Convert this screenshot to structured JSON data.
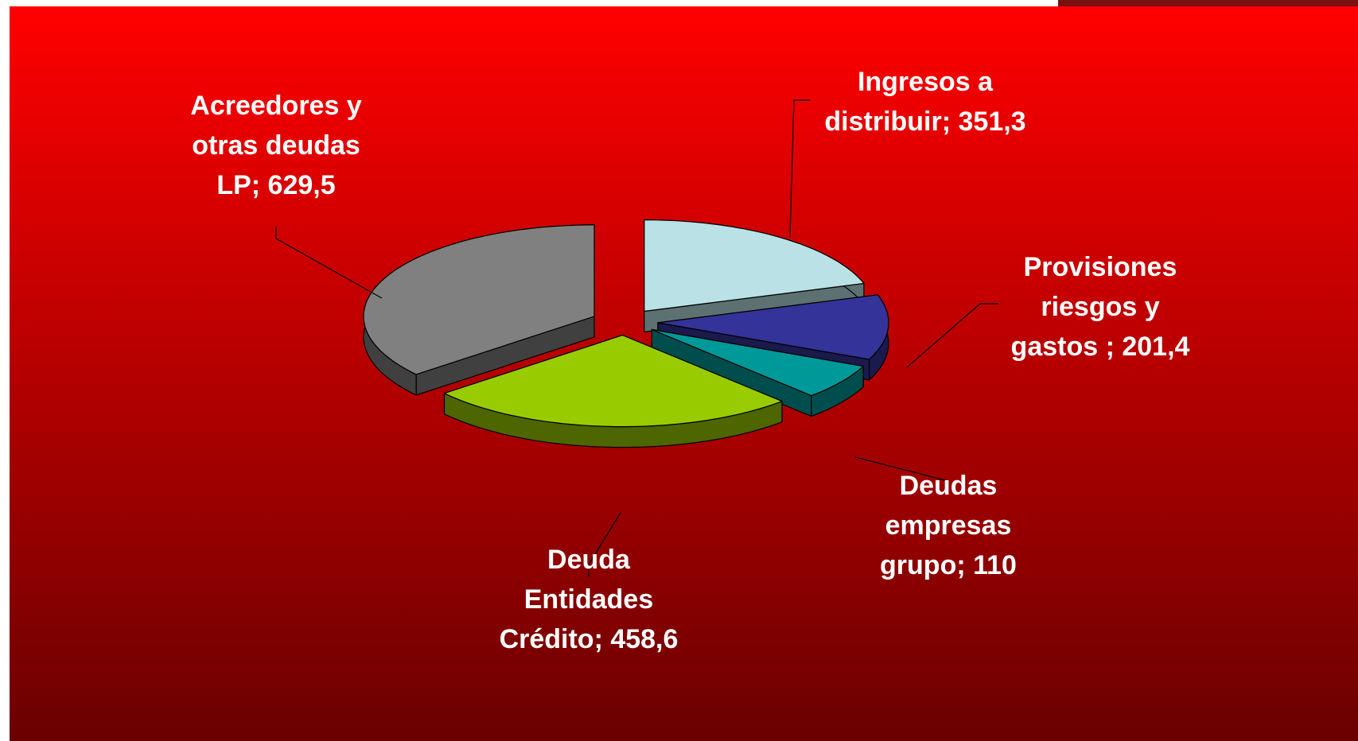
{
  "chart_data": {
    "type": "pie3d",
    "labels": [
      [
        "Ingresos a",
        "distribuir; 351,3"
      ],
      [
        "Provisiones",
        "riesgos y",
        "gastos ; 201,4"
      ],
      [
        "Deudas",
        "empresas",
        "grupo; 110"
      ],
      [
        "Deuda",
        "Entidades",
        "Crédito; 458,6"
      ],
      [
        "Acreedores y",
        "otras deudas",
        "LP; 629,5"
      ]
    ],
    "values": [
      351.3,
      201.4,
      110,
      458.6,
      629.5
    ],
    "colors": [
      "#b9e1e6",
      "#333399",
      "#009999",
      "#99cc00",
      "#808080"
    ],
    "exploded": true
  }
}
